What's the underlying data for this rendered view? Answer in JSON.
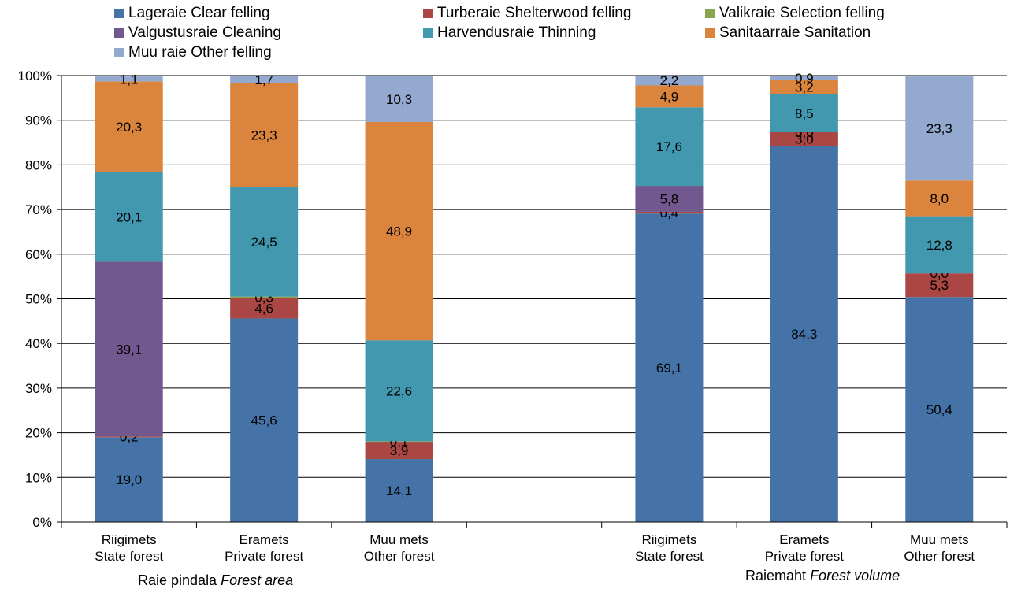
{
  "chart_data": {
    "type": "stacked-bar-100",
    "ylim": [
      0,
      100
    ],
    "yticks": [
      "0%",
      "10%",
      "20%",
      "30%",
      "40%",
      "50%",
      "60%",
      "70%",
      "80%",
      "90%",
      "100%"
    ],
    "legend_position": "top",
    "grid": true,
    "series": [
      {
        "name": "Lageraie Clear felling",
        "color": "#4573A7"
      },
      {
        "name": "Turberaie Shelterwood felling",
        "color": "#AA4643"
      },
      {
        "name": "Valikraie Selection felling",
        "color": "#89A54E"
      },
      {
        "name": "Valgustusraie Cleaning",
        "color": "#71588F"
      },
      {
        "name": "Harvendusraie Thinning",
        "color": "#4198AF"
      },
      {
        "name": "Sanitaarraie Sanitation",
        "color": "#DB843D"
      },
      {
        "name": "Muu raie Other felling",
        "color": "#93A9CF"
      }
    ],
    "groups": [
      {
        "label_et": "Raie pindala",
        "label_en": "Forest area",
        "bars": [
          {
            "line1": "Riigimets",
            "line2": "State forest",
            "values": [
              19.0,
              0.2,
              0.0,
              39.1,
              20.1,
              20.3,
              1.1
            ],
            "labels": [
              "19,0",
              "0,2",
              "",
              "39,1",
              "20,1",
              "20,3",
              "1,1"
            ]
          },
          {
            "line1": "Eramets",
            "line2": "Private forest",
            "values": [
              45.6,
              4.6,
              0.3,
              0.0,
              24.5,
              23.3,
              1.7
            ],
            "labels": [
              "45,6",
              "4,6",
              "0,3",
              "",
              "24,5",
              "23,3",
              "1,7"
            ]
          },
          {
            "line1": "Muu mets",
            "line2": "Other forest",
            "values": [
              14.1,
              3.9,
              0.1,
              0.0,
              22.6,
              48.9,
              10.3
            ],
            "labels": [
              "14,1",
              "3,9",
              "0,1",
              "",
              "22,6",
              "48,9",
              "10,3"
            ]
          }
        ]
      },
      {
        "label_et": "Raiemaht",
        "label_en": "Forest volume",
        "bars": [
          {
            "line1": "Riigimets",
            "line2": "State forest",
            "values": [
              69.1,
              0.4,
              0.0,
              5.8,
              17.6,
              4.9,
              2.2
            ],
            "labels": [
              "69,1",
              "0,4",
              "",
              "5,8",
              "17,6",
              "4,9",
              "2,2"
            ]
          },
          {
            "line1": "Eramets",
            "line2": "Private forest",
            "values": [
              84.3,
              3.0,
              0.0,
              0.0,
              8.5,
              3.2,
              0.9
            ],
            "labels": [
              "84,3",
              "3,0",
              "0,0",
              "",
              "8,5",
              "3,2",
              "0,9"
            ]
          },
          {
            "line1": "Muu mets",
            "line2": "Other forest",
            "values": [
              50.4,
              5.3,
              0.0,
              0.0,
              12.8,
              8.0,
              23.3
            ],
            "labels": [
              "50,4",
              "5,3",
              "0,0",
              "",
              "12,8",
              "8,0",
              "23,3"
            ]
          }
        ]
      }
    ]
  }
}
